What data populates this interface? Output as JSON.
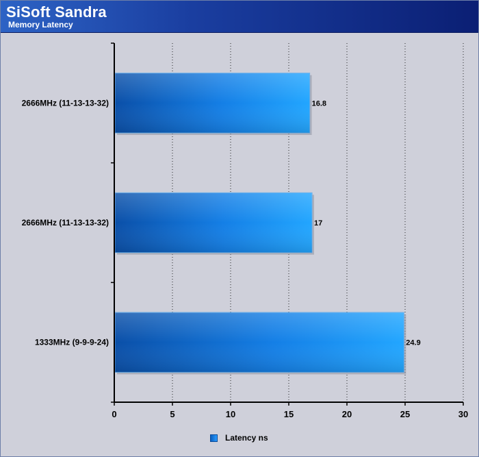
{
  "header": {
    "title": "SiSoft Sandra",
    "subtitle": "Memory Latency"
  },
  "chart_data": {
    "type": "bar",
    "orientation": "horizontal",
    "categories": [
      "2666MHz (11-13-13-32)",
      "2666MHz (11-13-13-32)",
      "1333MHz (9-9-9-24)"
    ],
    "series": [
      {
        "name": "Latency ns",
        "values": [
          16.8,
          17,
          24.9
        ]
      }
    ],
    "data_labels": [
      "16.8",
      "17",
      "24.9"
    ],
    "xlim": [
      0,
      30
    ],
    "x_ticks": [
      0,
      5,
      10,
      15,
      20,
      25,
      30
    ],
    "grid": "vertical dotted",
    "legend_position": "bottom",
    "colors": {
      "bar_dark": "#0a4fa8",
      "bar_light": "#1e9cff",
      "background": "#cfd0da"
    }
  },
  "legend": {
    "label": "Latency ns"
  }
}
